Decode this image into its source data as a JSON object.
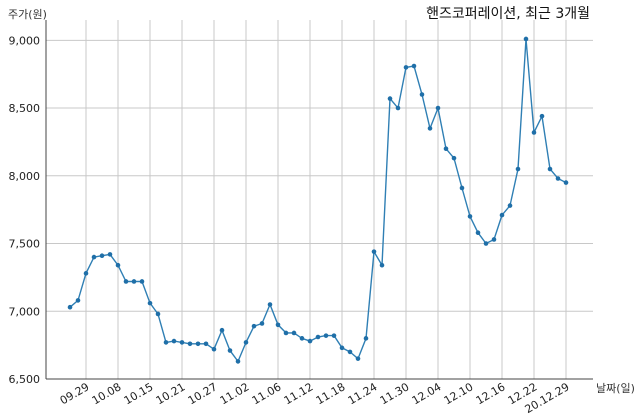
{
  "chart_data": {
    "type": "line",
    "title": "핸즈코퍼레이션, 최근 3개월",
    "ylabel": "주가(원)",
    "xlabel": "날짜(일)",
    "ylim": [
      6500,
      9150
    ],
    "yticks": [
      6500,
      7000,
      7500,
      8000,
      8500,
      9000
    ],
    "ytick_labels": [
      "6,500",
      "7,000",
      "7,500",
      "8,000",
      "8,500",
      "9,000"
    ],
    "xtick_labels": [
      "09.29",
      "10.08",
      "10.15",
      "10.21",
      "10.27",
      "11.02",
      "11.06",
      "11.12",
      "11.18",
      "11.24",
      "11.30",
      "12.04",
      "12.10",
      "12.16",
      "12.22",
      "20.12.29"
    ],
    "xtick_index": [
      2,
      6,
      10,
      14,
      18,
      22,
      26,
      30,
      34,
      38,
      42,
      46,
      50,
      54,
      58,
      62
    ],
    "grid": true,
    "series": [
      {
        "name": "",
        "color": "#2f7fb4",
        "values": [
          7030,
          7080,
          7280,
          7400,
          7410,
          7420,
          7340,
          7220,
          7220,
          7220,
          7060,
          6980,
          6770,
          6780,
          6770,
          6760,
          6760,
          6760,
          6720,
          6860,
          6710,
          6630,
          6770,
          6890,
          6910,
          7050,
          6900,
          6840,
          6840,
          6800,
          6780,
          6810,
          6820,
          6820,
          6730,
          6700,
          6650,
          6800,
          7440,
          7340,
          8570,
          8500,
          8800,
          8810,
          8600,
          8350,
          8500,
          8200,
          8130,
          7910,
          7700,
          7580,
          7500,
          7530,
          7710,
          7780,
          8050,
          9010,
          8320,
          8440,
          8050,
          7980,
          7950
        ]
      }
    ]
  }
}
